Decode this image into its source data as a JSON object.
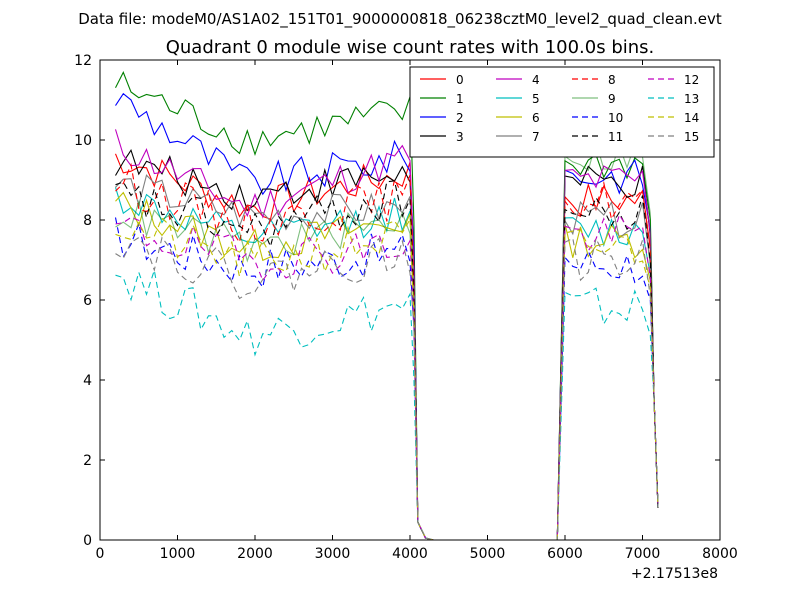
{
  "figure": {
    "supertitle": "Data file: modeM0/AS1A02_151T01_9000000818_06238cztM0_level2_quad_clean.evt"
  },
  "chart_data": {
    "type": "line",
    "title": "Quadrant 0 module wise count rates with 100.0s bins.",
    "xlabel": "",
    "ylabel": "",
    "x_offset_label": "+2.17513e8",
    "xlim": [
      0,
      8000
    ],
    "ylim": [
      0,
      12
    ],
    "xticks": [
      0,
      1000,
      2000,
      3000,
      4000,
      5000,
      6000,
      7000,
      8000
    ],
    "yticks": [
      0,
      2,
      4,
      6,
      8,
      10,
      12
    ],
    "grid": false,
    "legend_position": "top-right",
    "legend_columns": 4,
    "x_gaps": [
      [
        4100,
        5900
      ]
    ],
    "series": [
      {
        "name": "0",
        "color": "#ff0000",
        "dashed": false,
        "level": 9.3,
        "start": 9.6,
        "dip": 8.3,
        "end": 9.2,
        "post": 9.1
      },
      {
        "name": "1",
        "color": "#008000",
        "dashed": false,
        "level": 10.6,
        "start": 11.4,
        "dip": 10.0,
        "end": 10.7,
        "post": 10.0
      },
      {
        "name": "2",
        "color": "#0000ff",
        "dashed": false,
        "level": 9.6,
        "start": 11.1,
        "dip": 8.9,
        "end": 9.6,
        "post": 9.7
      },
      {
        "name": "3",
        "color": "#000000",
        "dashed": false,
        "level": 9.2,
        "start": 9.5,
        "dip": 8.6,
        "end": 9.2,
        "post": 9.5
      },
      {
        "name": "4",
        "color": "#bf00bf",
        "dashed": false,
        "level": 9.0,
        "start": 9.9,
        "dip": 8.3,
        "end": 9.6,
        "post": 9.6
      },
      {
        "name": "5",
        "color": "#00bfbf",
        "dashed": false,
        "level": 8.0,
        "start": 8.6,
        "dip": 7.5,
        "end": 8.2,
        "post": 8.3
      },
      {
        "name": "6",
        "color": "#bfbf00",
        "dashed": false,
        "level": 8.1,
        "start": 8.4,
        "dip": 7.3,
        "end": 8.0,
        "post": 8.1
      },
      {
        "name": "7",
        "color": "#808080",
        "dashed": false,
        "level": 8.6,
        "start": 8.9,
        "dip": 8.1,
        "end": 8.3,
        "post": 8.6
      },
      {
        "name": "8",
        "color": "#ff0000",
        "dashed": true,
        "level": 8.5,
        "start": 9.0,
        "dip": 7.9,
        "end": 8.6,
        "post": 9.1
      },
      {
        "name": "9",
        "color": "#008000",
        "dashed": false,
        "faded": true,
        "level": 7.8,
        "start": 8.2,
        "dip": 7.3,
        "end": 8.0,
        "post": 10.2
      },
      {
        "name": "10",
        "color": "#0000ff",
        "dashed": true,
        "level": 7.1,
        "start": 7.6,
        "dip": 6.8,
        "end": 7.2,
        "post": 7.5
      },
      {
        "name": "11",
        "color": "#000000",
        "dashed": true,
        "level": 8.1,
        "start": 8.6,
        "dip": 7.7,
        "end": 8.6,
        "post": 8.7
      },
      {
        "name": "12",
        "color": "#bf00bf",
        "dashed": true,
        "level": 7.4,
        "start": 7.8,
        "dip": 7.0,
        "end": 7.4,
        "post": 8.2
      },
      {
        "name": "13",
        "color": "#00bfbf",
        "dashed": true,
        "level": 5.4,
        "start": 6.7,
        "dip": 5.1,
        "end": 5.9,
        "post": 6.4
      },
      {
        "name": "14",
        "color": "#bfbf00",
        "dashed": true,
        "level": 7.5,
        "start": 7.9,
        "dip": 6.9,
        "end": 7.6,
        "post": 7.9
      },
      {
        "name": "15",
        "color": "#808080",
        "dashed": true,
        "level": 7.1,
        "start": 7.6,
        "dip": 6.5,
        "end": 7.2,
        "post": 7.6
      }
    ]
  }
}
